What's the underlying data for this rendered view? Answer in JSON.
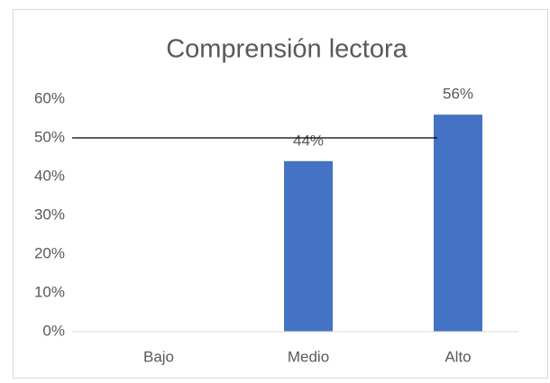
{
  "chart_data": {
    "type": "bar",
    "title": "Comprensión lectora",
    "categories": [
      "Bajo",
      "Medio",
      "Alto"
    ],
    "values": [
      0,
      44,
      56
    ],
    "value_labels": [
      null,
      "44%",
      "56%"
    ],
    "color": "#4472c4",
    "ylim": [
      0,
      60
    ],
    "yticks": [
      {
        "value": 0,
        "label": "0%"
      },
      {
        "value": 10,
        "label": "10%"
      },
      {
        "value": 20,
        "label": "20%"
      },
      {
        "value": 30,
        "label": "30%"
      },
      {
        "value": 40,
        "label": "40%"
      },
      {
        "value": 50,
        "label": "50%"
      },
      {
        "value": 60,
        "label": "60%"
      }
    ],
    "reference_line": 50,
    "grid": false
  }
}
